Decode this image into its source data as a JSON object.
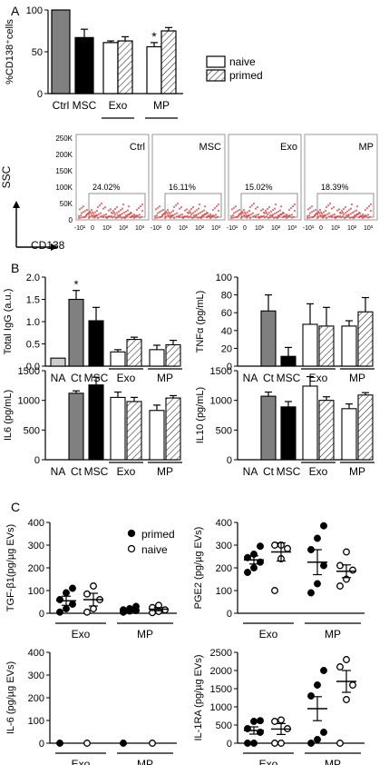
{
  "panel_labels": {
    "a": "A",
    "b": "B",
    "c": "C"
  },
  "colors": {
    "ctrl": "#808080",
    "msc": "#000000",
    "white": "#ffffff",
    "na": "#cccccc",
    "dots": "#e03030"
  },
  "chart_data": [
    {
      "id": "A_top",
      "type": "bar",
      "ylabel": "%CD138⁺cells",
      "ylim": [
        0,
        100
      ],
      "yticks": [
        "0",
        "50",
        "100"
      ],
      "categories": [
        "Ctrl",
        "MSC",
        "Exo naive",
        "Exo primed",
        "MP naive",
        "MP primed"
      ],
      "values": [
        100,
        67,
        61,
        63,
        56,
        75
      ],
      "errors": [
        0,
        10,
        2,
        5,
        5,
        4
      ],
      "star_index": 4,
      "star": "*",
      "xlabels": [
        "Ctrl",
        "MSC",
        "Exo",
        "MP"
      ],
      "legend": [
        "naive",
        "primed"
      ]
    },
    {
      "id": "A_flow",
      "type": "scatter",
      "ylabel": "SSC",
      "xlabel": "CD138",
      "yticks": [
        "0",
        "50K",
        "100K",
        "150K",
        "200K",
        "250K"
      ],
      "xticks": [
        "-10¹",
        "0",
        "10¹",
        "10²",
        "10³"
      ],
      "panels": [
        {
          "name": "Ctrl",
          "pct": "24.02%"
        },
        {
          "name": "MSC",
          "pct": "16.11%"
        },
        {
          "name": "Exo",
          "pct": "15.02%"
        },
        {
          "name": "MP",
          "pct": "18.39%"
        }
      ]
    },
    {
      "id": "B_igg",
      "type": "bar",
      "ylabel": "Total IgG (a.u.)",
      "ylim": [
        0,
        2
      ],
      "yticks": [
        "0.0",
        "0.5",
        "1.0",
        "1.5",
        "2.0"
      ],
      "values": [
        0.18,
        1.5,
        1.02,
        0.32,
        0.6,
        0.37,
        0.48
      ],
      "errors": [
        0,
        0.2,
        0.3,
        0.05,
        0.05,
        0.1,
        0.1
      ],
      "star": "*",
      "star_index": 1,
      "xlabels": [
        "NA",
        "Ct",
        "MSC",
        "Exo",
        "MP"
      ]
    },
    {
      "id": "B_tnf",
      "type": "bar",
      "ylabel": "TNFα (pg/mL)",
      "ylim": [
        0,
        100
      ],
      "yticks": [
        "0",
        "20",
        "40",
        "60",
        "80",
        "100"
      ],
      "values": [
        0,
        62,
        11,
        47,
        45,
        45,
        61
      ],
      "errors": [
        0,
        18,
        10,
        23,
        21,
        6,
        16
      ],
      "xlabels": [
        "NA",
        "Ct",
        "MSC",
        "Exo",
        "MP"
      ]
    },
    {
      "id": "B_il6",
      "type": "bar",
      "ylabel": "IL6 (pg/mL)",
      "ylim": [
        0,
        1500
      ],
      "yticks": [
        "0",
        "500",
        "1000",
        "1500"
      ],
      "values": [
        0,
        1120,
        1260,
        1050,
        980,
        830,
        1040
      ],
      "errors": [
        0,
        40,
        130,
        90,
        70,
        90,
        40
      ],
      "xlabels": [
        "NA",
        "Ct",
        "MSC",
        "Exo",
        "MP"
      ]
    },
    {
      "id": "B_il10",
      "type": "bar",
      "ylabel": "IL10 (pg/mL)",
      "ylim": [
        0,
        1500
      ],
      "yticks": [
        "0",
        "500",
        "1000",
        "1500"
      ],
      "values": [
        0,
        1070,
        890,
        1240,
        1000,
        860,
        1090
      ],
      "errors": [
        0,
        70,
        90,
        160,
        60,
        80,
        40
      ],
      "xlabels": [
        "NA",
        "Ct",
        "MSC",
        "Exo",
        "MP"
      ]
    },
    {
      "id": "C_tgf",
      "type": "scatter",
      "ylabel": "TGF-β1(pg/µg EVs)",
      "ylim": [
        0,
        400
      ],
      "yticks": [
        "0",
        "100",
        "200",
        "300",
        "400"
      ],
      "xlabels": [
        "Exo",
        "MP"
      ],
      "legend": [
        "primed",
        "naive"
      ],
      "groups": [
        {
          "filled": true,
          "points": [
            5,
            20,
            40,
            60,
            90,
            110
          ],
          "mean": 55,
          "sem": 20
        },
        {
          "filled": false,
          "points": [
            5,
            20,
            60,
            85,
            120
          ],
          "mean": 60,
          "sem": 28
        },
        {
          "filled": true,
          "points": [
            5,
            10,
            12,
            15,
            20,
            30
          ],
          "mean": 15,
          "sem": 5
        },
        {
          "filled": false,
          "points": [
            3,
            8,
            15,
            25,
            35
          ],
          "mean": 18,
          "sem": 7
        }
      ]
    },
    {
      "id": "C_pge2",
      "type": "scatter",
      "ylabel": "PGE2 (pg/µg EVs)",
      "ylim": [
        0,
        400
      ],
      "yticks": [
        "0",
        "100",
        "200",
        "300",
        "400"
      ],
      "xlabels": [
        "Exo",
        "MP"
      ],
      "groups": [
        {
          "filled": true,
          "points": [
            180,
            200,
            225,
            245,
            260,
            295
          ],
          "mean": 235,
          "sem": 18
        },
        {
          "filled": false,
          "points": [
            100,
            240,
            285,
            300,
            300
          ],
          "mean": 270,
          "sem": 40
        },
        {
          "filled": true,
          "points": [
            90,
            130,
            210,
            280,
            330,
            385
          ],
          "mean": 225,
          "sem": 55
        },
        {
          "filled": false,
          "points": [
            120,
            150,
            190,
            210,
            270
          ],
          "mean": 185,
          "sem": 28
        }
      ]
    },
    {
      "id": "C_il6",
      "type": "scatter",
      "ylabel": "IL-6 (pg/µg EVs)",
      "ylim": [
        0,
        400
      ],
      "yticks": [
        "0",
        "100",
        "200",
        "300",
        "400"
      ],
      "xlabels": [
        "Exo",
        "MP"
      ],
      "groups": [
        {
          "filled": true,
          "points": [
            0
          ],
          "mean": 0,
          "sem": 0
        },
        {
          "filled": false,
          "points": [
            0
          ],
          "mean": 0,
          "sem": 0
        },
        {
          "filled": true,
          "points": [
            0
          ],
          "mean": 0,
          "sem": 0
        },
        {
          "filled": false,
          "points": [
            0
          ],
          "mean": 0,
          "sem": 0
        }
      ]
    },
    {
      "id": "C_il1ra",
      "type": "scatter",
      "ylabel": "IL-1RA (pg/µg EVs)",
      "ylim": [
        0,
        2500
      ],
      "yticks": [
        "0",
        "500",
        "1000",
        "1500",
        "2000",
        "2500"
      ],
      "xlabels": [
        "Exo",
        "MP"
      ],
      "groups": [
        {
          "filled": true,
          "points": [
            0,
            0,
            300,
            400,
            600,
            620
          ],
          "mean": 350,
          "sem": 100
        },
        {
          "filled": false,
          "points": [
            0,
            0,
            400,
            600,
            640
          ],
          "mean": 390,
          "sem": 150
        },
        {
          "filled": true,
          "points": [
            0,
            100,
            300,
            1300,
            1600,
            2000
          ],
          "mean": 950,
          "sem": 330
        },
        {
          "filled": false,
          "points": [
            0,
            1200,
            1600,
            2100,
            2300
          ],
          "mean": 1700,
          "sem": 300
        }
      ]
    }
  ]
}
